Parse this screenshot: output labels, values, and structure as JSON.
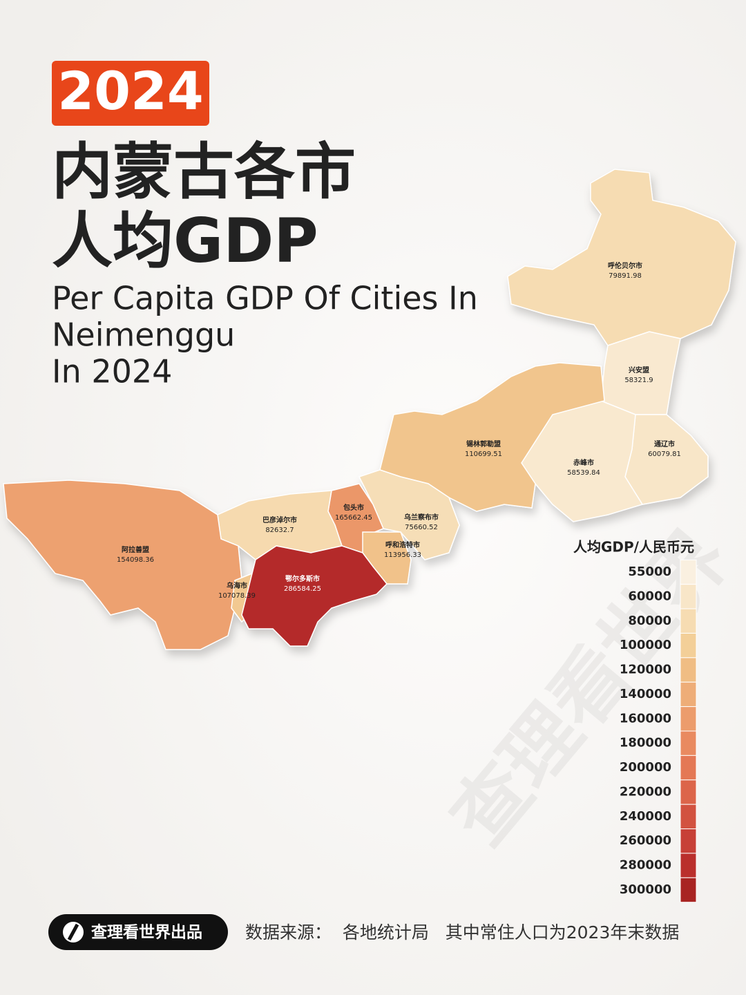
{
  "badge": "2024",
  "title": [
    "内蒙古各市",
    "人均GDP"
  ],
  "subtitle": [
    "Per Capita GDP Of Cities In",
    "Neimenggu",
    "In 2024"
  ],
  "map": {
    "regions": [
      {
        "name": "呼伦贝尔市",
        "value": 79891.98
      },
      {
        "name": "兴安盟",
        "value": 58321.9
      },
      {
        "name": "通辽市",
        "value": 60079.81
      },
      {
        "name": "赤峰市",
        "value": 58539.84
      },
      {
        "name": "锡林郭勒盟",
        "value": 110699.51
      },
      {
        "name": "乌兰察布市",
        "value": 75660.52
      },
      {
        "name": "包头市",
        "value": 165662.45
      },
      {
        "name": "呼和浩特市",
        "value": 113956.33
      },
      {
        "name": "巴彦淖尔市",
        "value": 82632.7
      },
      {
        "name": "阿拉善盟",
        "value": 154098.36
      },
      {
        "name": "乌海市",
        "value": 107078.39
      },
      {
        "name": "鄂尔多斯市",
        "value": 286584.25
      }
    ]
  },
  "legend": {
    "title": "人均GDP/人民币元",
    "ticks": [
      55000,
      60000,
      80000,
      100000,
      120000,
      140000,
      160000,
      180000,
      200000,
      220000,
      240000,
      260000,
      280000,
      300000
    ],
    "colors": [
      "#faf0e0",
      "#f8e6c8",
      "#f6dcb2",
      "#f3cf98",
      "#f0bd84",
      "#eead78",
      "#ec9c6c",
      "#e98a60",
      "#e47855",
      "#dc654a",
      "#d25240",
      "#c74037",
      "#ba2f2c",
      "#a82422"
    ]
  },
  "watermark": "查理看世界",
  "footer": {
    "brand": "查理看世界出品",
    "source": "数据来源：  各地统计局   其中常住人口为2023年末数据"
  }
}
